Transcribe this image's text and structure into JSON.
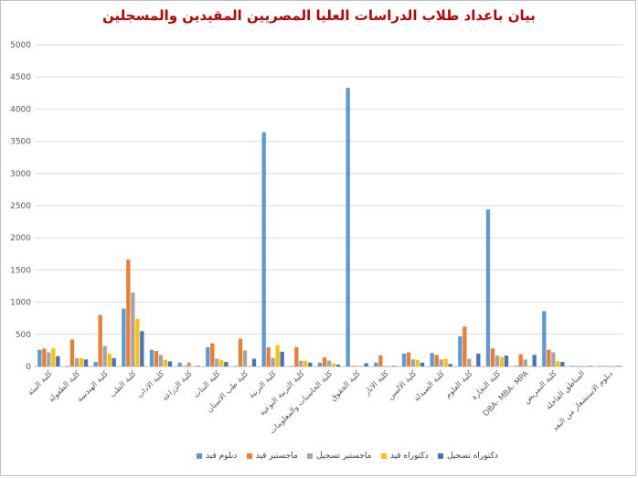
{
  "chart_data": {
    "type": "bar",
    "title": "بيان باعداد طلاب الدراسات العليا المصريين المقيدين والمسجلين",
    "ylim": [
      0,
      5000
    ],
    "yticks": [
      0,
      500,
      1000,
      1500,
      2000,
      2500,
      3000,
      3500,
      4000,
      4500,
      5000
    ],
    "grid": true,
    "legend_position": "bottom",
    "categories": [
      "كلية البيئة",
      "كلية الطفولة",
      "كلية الهندسة",
      "كلية الطب",
      "كلية الاداب",
      "كلية الزراعة",
      "كلية البنات",
      "كلية طب الاسنان",
      "كلية التربية",
      "كلية التربية النوعية",
      "كلية الحاسبات والمعلومات",
      "كلية الحقوق",
      "كلية الاثار",
      "كلية الالسن",
      "كلية الصيدلة",
      "كلية العلوم",
      "كلية التجارة",
      "DBA- MBA- MPA",
      "كلية التمريض",
      "المناطق القاحلة",
      "دبلوم الاستشعار من البعد"
    ],
    "series": [
      {
        "name": "دبلوم قيد",
        "color": "#5b9bd5",
        "values": [
          260,
          10,
          70,
          900,
          260,
          60,
          300,
          10,
          3640,
          10,
          60,
          4330,
          60,
          200,
          210,
          470,
          2440,
          10,
          860,
          10,
          10
        ]
      },
      {
        "name": "ماجستير قيد",
        "color": "#ed7d31",
        "values": [
          280,
          420,
          800,
          1660,
          240,
          10,
          360,
          430,
          300,
          300,
          140,
          10,
          170,
          220,
          180,
          620,
          280,
          190,
          260,
          10,
          10
        ]
      },
      {
        "name": "ماجستير تسجيل",
        "color": "#a5a5a5",
        "values": [
          220,
          130,
          320,
          1150,
          180,
          60,
          120,
          250,
          130,
          90,
          90,
          10,
          10,
          110,
          110,
          120,
          170,
          110,
          220,
          10,
          10
        ]
      },
      {
        "name": "دكتوراه قيد",
        "color": "#ffc000",
        "values": [
          280,
          130,
          200,
          740,
          100,
          10,
          100,
          10,
          330,
          90,
          50,
          10,
          10,
          100,
          120,
          10,
          150,
          10,
          80,
          10,
          10
        ]
      },
      {
        "name": "دكتوراه تسجيل",
        "color": "#4472c4",
        "values": [
          160,
          110,
          130,
          550,
          80,
          10,
          70,
          120,
          230,
          60,
          30,
          50,
          10,
          60,
          40,
          200,
          170,
          180,
          70,
          10,
          10
        ]
      }
    ]
  }
}
